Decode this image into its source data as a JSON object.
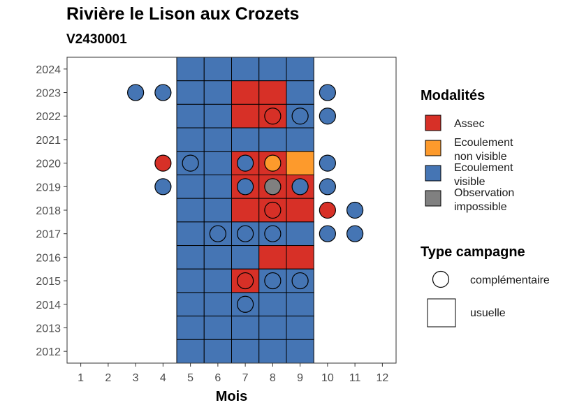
{
  "title": "Rivière le Lison aux Crozets",
  "subtitle": "V2430001",
  "chart_data": {
    "type": "heatmap",
    "title": "Rivière le Lison aux Crozets",
    "subtitle": "V2430001",
    "xlabel": "Mois",
    "ylabel": "",
    "x_ticks": [
      "1",
      "2",
      "3",
      "4",
      "5",
      "6",
      "7",
      "8",
      "9",
      "10",
      "11",
      "12"
    ],
    "y_ticks": [
      "2012",
      "2013",
      "2014",
      "2015",
      "2016",
      "2017",
      "2018",
      "2019",
      "2020",
      "2021",
      "2022",
      "2023",
      "2024"
    ],
    "xlim": [
      0.5,
      12.5
    ],
    "ylim": [
      2011.5,
      2024.5
    ],
    "colors": {
      "assec": "#D73027",
      "ecoulement_non_visible": "#FD9A2C",
      "ecoulement_visible": "#4575B4",
      "observation_impossible": "#808080"
    },
    "usuelle": [
      {
        "year": 2024,
        "months": [
          5,
          6,
          7,
          8,
          9
        ],
        "values": [
          "ecoulement_visible",
          "ecoulement_visible",
          "ecoulement_visible",
          "ecoulement_visible",
          "ecoulement_visible"
        ]
      },
      {
        "year": 2023,
        "months": [
          5,
          6,
          7,
          8,
          9
        ],
        "values": [
          "ecoulement_visible",
          "ecoulement_visible",
          "assec",
          "assec",
          "ecoulement_visible"
        ]
      },
      {
        "year": 2022,
        "months": [
          5,
          6,
          7,
          8,
          9
        ],
        "values": [
          "ecoulement_visible",
          "ecoulement_visible",
          "assec",
          "assec",
          "ecoulement_visible"
        ]
      },
      {
        "year": 2021,
        "months": [
          5,
          6,
          7,
          8,
          9
        ],
        "values": [
          "ecoulement_visible",
          "ecoulement_visible",
          "ecoulement_visible",
          "ecoulement_visible",
          "ecoulement_visible"
        ]
      },
      {
        "year": 2020,
        "months": [
          5,
          6,
          7,
          8,
          9
        ],
        "values": [
          "ecoulement_visible",
          "ecoulement_visible",
          "assec",
          "assec",
          "ecoulement_non_visible"
        ]
      },
      {
        "year": 2019,
        "months": [
          5,
          6,
          7,
          8,
          9
        ],
        "values": [
          "ecoulement_visible",
          "ecoulement_visible",
          "assec",
          "assec",
          "assec"
        ]
      },
      {
        "year": 2018,
        "months": [
          5,
          6,
          7,
          8,
          9
        ],
        "values": [
          "ecoulement_visible",
          "ecoulement_visible",
          "assec",
          "assec",
          "assec"
        ]
      },
      {
        "year": 2017,
        "months": [
          5,
          6,
          7,
          8,
          9
        ],
        "values": [
          "ecoulement_visible",
          "ecoulement_visible",
          "ecoulement_visible",
          "ecoulement_visible",
          "ecoulement_visible"
        ]
      },
      {
        "year": 2016,
        "months": [
          5,
          6,
          7,
          8,
          9
        ],
        "values": [
          "ecoulement_visible",
          "ecoulement_visible",
          "ecoulement_visible",
          "assec",
          "assec"
        ]
      },
      {
        "year": 2015,
        "months": [
          5,
          6,
          7,
          8,
          9
        ],
        "values": [
          "ecoulement_visible",
          "ecoulement_visible",
          "assec",
          "ecoulement_visible",
          "ecoulement_visible"
        ]
      },
      {
        "year": 2014,
        "months": [
          5,
          6,
          7,
          8,
          9
        ],
        "values": [
          "ecoulement_visible",
          "ecoulement_visible",
          "ecoulement_visible",
          "ecoulement_visible",
          "ecoulement_visible"
        ]
      },
      {
        "year": 2013,
        "months": [
          5,
          6,
          7,
          8,
          9
        ],
        "values": [
          "ecoulement_visible",
          "ecoulement_visible",
          "ecoulement_visible",
          "ecoulement_visible",
          "ecoulement_visible"
        ]
      },
      {
        "year": 2012,
        "months": [
          5,
          6,
          7,
          8,
          9
        ],
        "values": [
          "ecoulement_visible",
          "ecoulement_visible",
          "ecoulement_visible",
          "ecoulement_visible",
          "ecoulement_visible"
        ]
      }
    ],
    "complementaire": [
      {
        "year": 2023,
        "month": 3,
        "value": "ecoulement_visible"
      },
      {
        "year": 2023,
        "month": 4,
        "value": "ecoulement_visible"
      },
      {
        "year": 2023,
        "month": 10,
        "value": "ecoulement_visible"
      },
      {
        "year": 2022,
        "month": 8,
        "value": "assec"
      },
      {
        "year": 2022,
        "month": 9,
        "value": "ecoulement_visible"
      },
      {
        "year": 2022,
        "month": 10,
        "value": "ecoulement_visible"
      },
      {
        "year": 2020,
        "month": 4,
        "value": "assec"
      },
      {
        "year": 2020,
        "month": 5,
        "value": "ecoulement_visible"
      },
      {
        "year": 2020,
        "month": 7,
        "value": "ecoulement_visible"
      },
      {
        "year": 2020,
        "month": 8,
        "value": "ecoulement_non_visible"
      },
      {
        "year": 2020,
        "month": 10,
        "value": "ecoulement_visible"
      },
      {
        "year": 2019,
        "month": 4,
        "value": "ecoulement_visible"
      },
      {
        "year": 2019,
        "month": 7,
        "value": "ecoulement_visible"
      },
      {
        "year": 2019,
        "month": 8,
        "value": "observation_impossible"
      },
      {
        "year": 2019,
        "month": 9,
        "value": "ecoulement_visible"
      },
      {
        "year": 2019,
        "month": 10,
        "value": "ecoulement_visible"
      },
      {
        "year": 2018,
        "month": 8,
        "value": "assec"
      },
      {
        "year": 2018,
        "month": 10,
        "value": "assec"
      },
      {
        "year": 2018,
        "month": 11,
        "value": "ecoulement_visible"
      },
      {
        "year": 2017,
        "month": 6,
        "value": "ecoulement_visible"
      },
      {
        "year": 2017,
        "month": 7,
        "value": "ecoulement_visible"
      },
      {
        "year": 2017,
        "month": 8,
        "value": "ecoulement_visible"
      },
      {
        "year": 2017,
        "month": 10,
        "value": "ecoulement_visible"
      },
      {
        "year": 2017,
        "month": 11,
        "value": "ecoulement_visible"
      },
      {
        "year": 2015,
        "month": 7,
        "value": "assec"
      },
      {
        "year": 2015,
        "month": 8,
        "value": "ecoulement_visible"
      },
      {
        "year": 2015,
        "month": 9,
        "value": "ecoulement_visible"
      },
      {
        "year": 2014,
        "month": 7,
        "value": "ecoulement_visible"
      }
    ],
    "legend": {
      "modalites_title": "Modalités",
      "modalites": [
        {
          "key": "assec",
          "lines": [
            "Assec"
          ]
        },
        {
          "key": "ecoulement_non_visible",
          "lines": [
            "Ecoulement",
            "non visible"
          ]
        },
        {
          "key": "ecoulement_visible",
          "lines": [
            "Ecoulement",
            "visible"
          ]
        },
        {
          "key": "observation_impossible",
          "lines": [
            "Observation",
            "impossible"
          ]
        }
      ],
      "type_title": "Type campagne",
      "types": [
        {
          "key": "complementaire",
          "label": "complémentaire"
        },
        {
          "key": "usuelle",
          "label": "usuelle"
        }
      ]
    }
  }
}
